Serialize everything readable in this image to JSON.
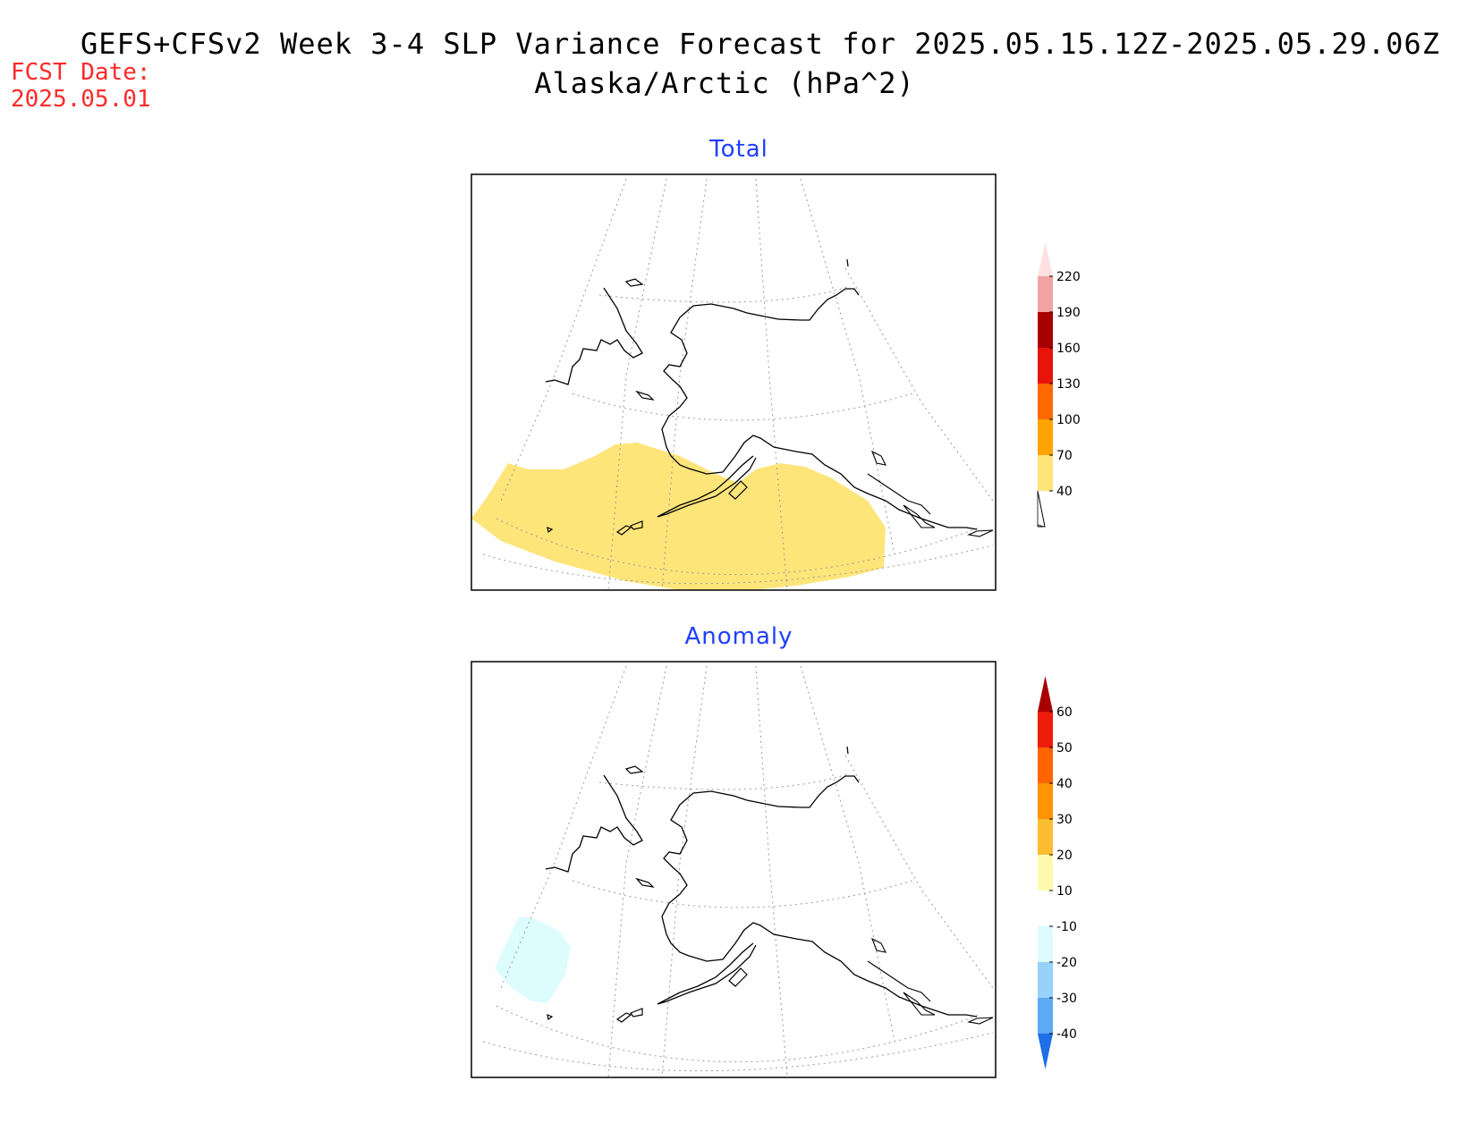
{
  "title": {
    "line1": "GEFS+CFSv2 Week 3-4 SLP Variance Forecast for 2025.05.15.12Z-2025.05.29.06Z",
    "line2": "Alaska/Arctic (hPa^2)"
  },
  "forecast_date": {
    "label": "FCST Date:",
    "value": "2025.05.01"
  },
  "panels": [
    {
      "title": "Total",
      "colorbar": {
        "labels": [
          "40",
          "70",
          "100",
          "130",
          "160",
          "190",
          "220"
        ],
        "colors": [
          "#fee57a",
          "#ffa300",
          "#ff6a00",
          "#e8140a",
          "#a70000",
          "#f3a2a2",
          "#ffe0e0"
        ]
      }
    },
    {
      "title": "Anomaly",
      "colorbar": {
        "labels": [
          "-40",
          "-30",
          "-20",
          "-10",
          "10",
          "20",
          "30",
          "40",
          "50",
          "60"
        ],
        "colors": [
          "#1e6fe8",
          "#5aaaf5",
          "#96d2fa",
          "#dcfcfe",
          "#ffffff",
          "#fff9b0",
          "#fdbd32",
          "#ff9400",
          "#ff6400",
          "#ee1c0a",
          "#a80000"
        ]
      }
    }
  ]
}
